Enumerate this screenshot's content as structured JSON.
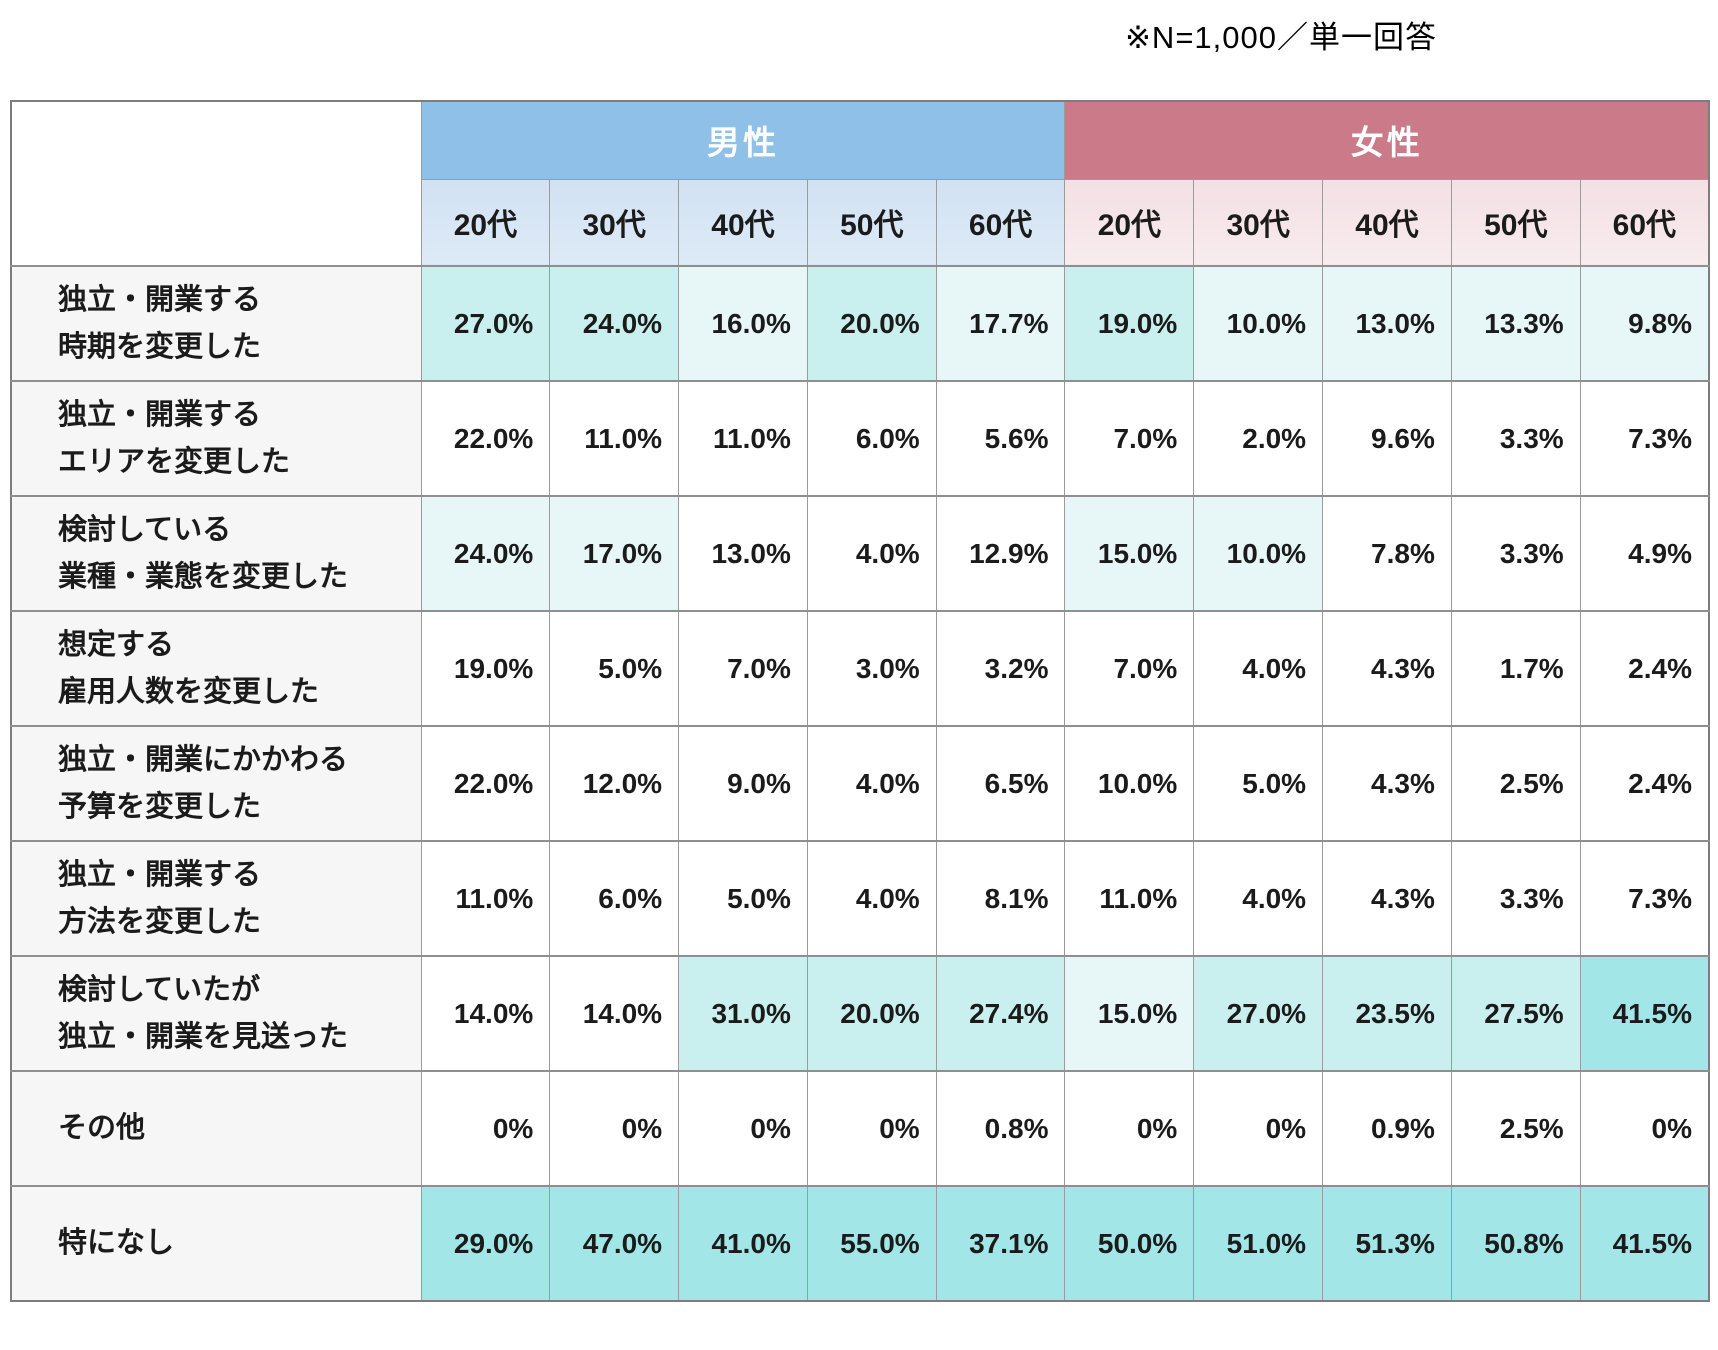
{
  "note": "※N=1,000／単一回答",
  "table": {
    "groups": [
      {
        "label": "男性",
        "color": "#8fc0e7"
      },
      {
        "label": "女性",
        "color": "#ca7a88"
      }
    ],
    "age_labels": [
      "20代",
      "30代",
      "40代",
      "50代",
      "60代"
    ],
    "highlight_colors": {
      "0": "#ffffff",
      "1": "#a3e6e7",
      "2": "#c9f0ef",
      "3": "#e7f7f8"
    },
    "rows": [
      {
        "label_lines": [
          "独立・開業する",
          "時期を変更した"
        ],
        "cells": [
          {
            "v": "27.0%",
            "h": 2
          },
          {
            "v": "24.0%",
            "h": 2
          },
          {
            "v": "16.0%",
            "h": 3
          },
          {
            "v": "20.0%",
            "h": 2
          },
          {
            "v": "17.7%",
            "h": 3
          },
          {
            "v": "19.0%",
            "h": 2
          },
          {
            "v": "10.0%",
            "h": 3
          },
          {
            "v": "13.0%",
            "h": 3
          },
          {
            "v": "13.3%",
            "h": 3
          },
          {
            "v": "9.8%",
            "h": 3
          }
        ]
      },
      {
        "label_lines": [
          "独立・開業する",
          "エリアを変更した"
        ],
        "cells": [
          {
            "v": "22.0%",
            "h": 0
          },
          {
            "v": "11.0%",
            "h": 0
          },
          {
            "v": "11.0%",
            "h": 0
          },
          {
            "v": "6.0%",
            "h": 0
          },
          {
            "v": "5.6%",
            "h": 0
          },
          {
            "v": "7.0%",
            "h": 0
          },
          {
            "v": "2.0%",
            "h": 0
          },
          {
            "v": "9.6%",
            "h": 0
          },
          {
            "v": "3.3%",
            "h": 0
          },
          {
            "v": "7.3%",
            "h": 0
          }
        ]
      },
      {
        "label_lines": [
          "検討している",
          "業種・業態を変更した"
        ],
        "cells": [
          {
            "v": "24.0%",
            "h": 3
          },
          {
            "v": "17.0%",
            "h": 3
          },
          {
            "v": "13.0%",
            "h": 0
          },
          {
            "v": "4.0%",
            "h": 0
          },
          {
            "v": "12.9%",
            "h": 0
          },
          {
            "v": "15.0%",
            "h": 3
          },
          {
            "v": "10.0%",
            "h": 3
          },
          {
            "v": "7.8%",
            "h": 0
          },
          {
            "v": "3.3%",
            "h": 0
          },
          {
            "v": "4.9%",
            "h": 0
          }
        ]
      },
      {
        "label_lines": [
          "想定する",
          "雇用人数を変更した"
        ],
        "cells": [
          {
            "v": "19.0%",
            "h": 0
          },
          {
            "v": "5.0%",
            "h": 0
          },
          {
            "v": "7.0%",
            "h": 0
          },
          {
            "v": "3.0%",
            "h": 0
          },
          {
            "v": "3.2%",
            "h": 0
          },
          {
            "v": "7.0%",
            "h": 0
          },
          {
            "v": "4.0%",
            "h": 0
          },
          {
            "v": "4.3%",
            "h": 0
          },
          {
            "v": "1.7%",
            "h": 0
          },
          {
            "v": "2.4%",
            "h": 0
          }
        ]
      },
      {
        "label_lines": [
          "独立・開業にかかわる",
          "予算を変更した"
        ],
        "cells": [
          {
            "v": "22.0%",
            "h": 0
          },
          {
            "v": "12.0%",
            "h": 0
          },
          {
            "v": "9.0%",
            "h": 0
          },
          {
            "v": "4.0%",
            "h": 0
          },
          {
            "v": "6.5%",
            "h": 0
          },
          {
            "v": "10.0%",
            "h": 0
          },
          {
            "v": "5.0%",
            "h": 0
          },
          {
            "v": "4.3%",
            "h": 0
          },
          {
            "v": "2.5%",
            "h": 0
          },
          {
            "v": "2.4%",
            "h": 0
          }
        ]
      },
      {
        "label_lines": [
          "独立・開業する",
          "方法を変更した"
        ],
        "cells": [
          {
            "v": "11.0%",
            "h": 0
          },
          {
            "v": "6.0%",
            "h": 0
          },
          {
            "v": "5.0%",
            "h": 0
          },
          {
            "v": "4.0%",
            "h": 0
          },
          {
            "v": "8.1%",
            "h": 0
          },
          {
            "v": "11.0%",
            "h": 0
          },
          {
            "v": "4.0%",
            "h": 0
          },
          {
            "v": "4.3%",
            "h": 0
          },
          {
            "v": "3.3%",
            "h": 0
          },
          {
            "v": "7.3%",
            "h": 0
          }
        ]
      },
      {
        "label_lines": [
          "検討していたが",
          "独立・開業を見送った"
        ],
        "cells": [
          {
            "v": "14.0%",
            "h": 0
          },
          {
            "v": "14.0%",
            "h": 0
          },
          {
            "v": "31.0%",
            "h": 2
          },
          {
            "v": "20.0%",
            "h": 2
          },
          {
            "v": "27.4%",
            "h": 2
          },
          {
            "v": "15.0%",
            "h": 3
          },
          {
            "v": "27.0%",
            "h": 2
          },
          {
            "v": "23.5%",
            "h": 2
          },
          {
            "v": "27.5%",
            "h": 2
          },
          {
            "v": "41.5%",
            "h": 1
          }
        ]
      },
      {
        "label_lines": [
          "その他"
        ],
        "cells": [
          {
            "v": "0%",
            "h": 0
          },
          {
            "v": "0%",
            "h": 0
          },
          {
            "v": "0%",
            "h": 0
          },
          {
            "v": "0%",
            "h": 0
          },
          {
            "v": "0.8%",
            "h": 0
          },
          {
            "v": "0%",
            "h": 0
          },
          {
            "v": "0%",
            "h": 0
          },
          {
            "v": "0.9%",
            "h": 0
          },
          {
            "v": "2.5%",
            "h": 0
          },
          {
            "v": "0%",
            "h": 0
          }
        ]
      },
      {
        "label_lines": [
          "特になし"
        ],
        "cells": [
          {
            "v": "29.0%",
            "h": 1
          },
          {
            "v": "47.0%",
            "h": 1
          },
          {
            "v": "41.0%",
            "h": 1
          },
          {
            "v": "55.0%",
            "h": 1
          },
          {
            "v": "37.1%",
            "h": 1
          },
          {
            "v": "50.0%",
            "h": 1
          },
          {
            "v": "51.0%",
            "h": 1
          },
          {
            "v": "51.3%",
            "h": 1
          },
          {
            "v": "50.8%",
            "h": 1
          },
          {
            "v": "41.5%",
            "h": 1
          }
        ]
      }
    ]
  },
  "chart_data": {
    "type": "table",
    "note": "※N=1,000／単一回答",
    "column_groups": [
      "男性",
      "女性"
    ],
    "columns": [
      "男性20代",
      "男性30代",
      "男性40代",
      "男性50代",
      "男性60代",
      "女性20代",
      "女性30代",
      "女性40代",
      "女性50代",
      "女性60代"
    ],
    "row_labels": [
      "独立・開業する時期を変更した",
      "独立・開業するエリアを変更した",
      "検討している業種・業態を変更した",
      "想定する雇用人数を変更した",
      "独立・開業にかかわる予算を変更した",
      "独立・開業する方法を変更した",
      "検討していたが独立・開業を見送った",
      "その他",
      "特になし"
    ],
    "values_percent": [
      [
        27.0,
        24.0,
        16.0,
        20.0,
        17.7,
        19.0,
        10.0,
        13.0,
        13.3,
        9.8
      ],
      [
        22.0,
        11.0,
        11.0,
        6.0,
        5.6,
        7.0,
        2.0,
        9.6,
        3.3,
        7.3
      ],
      [
        24.0,
        17.0,
        13.0,
        4.0,
        12.9,
        15.0,
        10.0,
        7.8,
        3.3,
        4.9
      ],
      [
        19.0,
        5.0,
        7.0,
        3.0,
        3.2,
        7.0,
        4.0,
        4.3,
        1.7,
        2.4
      ],
      [
        22.0,
        12.0,
        9.0,
        4.0,
        6.5,
        10.0,
        5.0,
        4.3,
        2.5,
        2.4
      ],
      [
        11.0,
        6.0,
        5.0,
        4.0,
        8.1,
        11.0,
        4.0,
        4.3,
        3.3,
        7.3
      ],
      [
        14.0,
        14.0,
        31.0,
        20.0,
        27.4,
        15.0,
        27.0,
        23.5,
        27.5,
        41.5
      ],
      [
        0,
        0,
        0,
        0,
        0.8,
        0,
        0,
        0.9,
        2.5,
        0
      ],
      [
        29.0,
        47.0,
        41.0,
        55.0,
        37.1,
        50.0,
        51.0,
        51.3,
        50.8,
        41.5
      ]
    ],
    "highlight_rule": "top-3 values per column shaded cyan; darker shade = higher rank"
  }
}
